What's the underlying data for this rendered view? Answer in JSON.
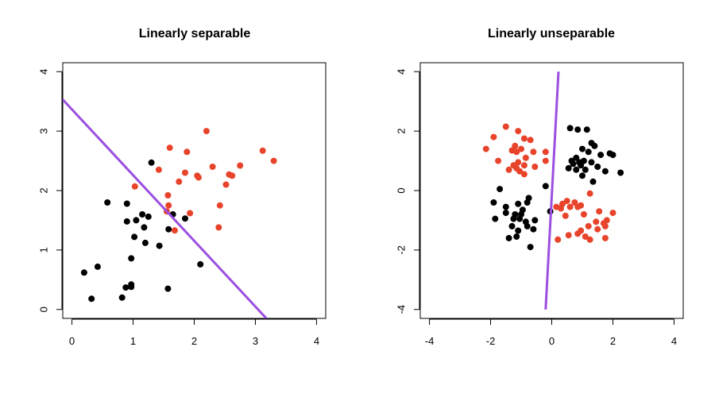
{
  "chart_data": [
    {
      "type": "scatter",
      "title": "Linearly separable",
      "xlabel": "",
      "ylabel": "",
      "xlim": [
        -0.15,
        4.15
      ],
      "ylim": [
        -0.15,
        4.15
      ],
      "xticks": [
        0,
        1,
        2,
        3,
        4
      ],
      "yticks": [
        0,
        1,
        2,
        3,
        4
      ],
      "colors": {
        "class_a": "#000000",
        "class_b": "#e8432b",
        "line": "#9b4fe0"
      },
      "series": [
        {
          "color": "class_a",
          "points": [
            [
              0.2,
              0.62
            ],
            [
              0.32,
              0.18
            ],
            [
              0.42,
              0.72
            ],
            [
              0.58,
              1.8
            ],
            [
              0.82,
              0.2
            ],
            [
              0.88,
              0.37
            ],
            [
              0.9,
              1.48
            ],
            [
              0.9,
              1.78
            ],
            [
              0.97,
              0.42
            ],
            [
              0.97,
              0.38
            ],
            [
              0.97,
              0.86
            ],
            [
              1.02,
              1.22
            ],
            [
              1.05,
              1.5
            ],
            [
              1.15,
              1.6
            ],
            [
              1.18,
              1.38
            ],
            [
              1.2,
              1.12
            ],
            [
              1.25,
              1.56
            ],
            [
              1.3,
              2.47
            ],
            [
              1.43,
              1.07
            ],
            [
              1.57,
              0.35
            ],
            [
              1.58,
              1.35
            ],
            [
              1.65,
              1.6
            ],
            [
              1.85,
              1.53
            ],
            [
              2.1,
              0.76
            ]
          ]
        },
        {
          "color": "class_b",
          "points": [
            [
              1.03,
              2.07
            ],
            [
              1.42,
              2.35
            ],
            [
              1.55,
              1.65
            ],
            [
              1.57,
              1.92
            ],
            [
              1.58,
              1.75
            ],
            [
              1.6,
              2.72
            ],
            [
              1.68,
              1.33
            ],
            [
              1.75,
              2.15
            ],
            [
              1.85,
              2.3
            ],
            [
              1.88,
              2.65
            ],
            [
              1.93,
              1.62
            ],
            [
              2.05,
              2.25
            ],
            [
              2.07,
              2.22
            ],
            [
              2.2,
              3.0
            ],
            [
              2.3,
              2.4
            ],
            [
              2.4,
              1.38
            ],
            [
              2.42,
              1.75
            ],
            [
              2.52,
              2.1
            ],
            [
              2.57,
              2.27
            ],
            [
              2.62,
              2.25
            ],
            [
              2.75,
              2.42
            ],
            [
              3.12,
              2.67
            ],
            [
              3.3,
              2.5
            ]
          ]
        }
      ],
      "line": {
        "x": [
          -0.15,
          3.18
        ],
        "y": [
          3.53,
          -0.15
        ]
      }
    },
    {
      "type": "scatter",
      "title": "Linearly unseparable",
      "xlabel": "",
      "ylabel": "",
      "xlim": [
        -4.3,
        4.3
      ],
      "ylim": [
        -4.3,
        4.3
      ],
      "xticks": [
        -4,
        -2,
        0,
        2,
        4
      ],
      "yticks": [
        -4,
        -2,
        0,
        2,
        4
      ],
      "colors": {
        "class_a": "#000000",
        "class_b": "#e8432b",
        "line": "#9b4fe0"
      },
      "series": [
        {
          "color": "class_a",
          "points": [
            [
              0.6,
              2.1
            ],
            [
              0.85,
              2.05
            ],
            [
              1.15,
              2.05
            ],
            [
              1.3,
              1.6
            ],
            [
              1.0,
              1.4
            ],
            [
              1.4,
              1.5
            ],
            [
              1.2,
              1.3
            ],
            [
              0.8,
              1.1
            ],
            [
              1.6,
              1.2
            ],
            [
              1.9,
              1.25
            ],
            [
              2.0,
              1.2
            ],
            [
              0.55,
              0.75
            ],
            [
              0.7,
              0.9
            ],
            [
              0.9,
              0.95
            ],
            [
              1.05,
              1.0
            ],
            [
              1.3,
              0.95
            ],
            [
              0.8,
              0.7
            ],
            [
              1.1,
              0.7
            ],
            [
              1.5,
              0.8
            ],
            [
              1.75,
              0.65
            ],
            [
              2.25,
              0.6
            ],
            [
              1.0,
              0.5
            ],
            [
              0.95,
              0.85
            ],
            [
              1.35,
              0.3
            ],
            [
              0.65,
              1.0
            ],
            [
              -0.2,
              0.15
            ],
            [
              -1.7,
              0.05
            ],
            [
              -1.9,
              -0.4
            ],
            [
              -1.5,
              -0.55
            ],
            [
              -1.1,
              -0.45
            ],
            [
              -0.8,
              -0.4
            ],
            [
              -0.95,
              -0.65
            ],
            [
              -1.2,
              -0.8
            ],
            [
              -1.5,
              -0.75
            ],
            [
              -1.85,
              -0.95
            ],
            [
              -1.05,
              -0.95
            ],
            [
              -0.85,
              -1.05
            ],
            [
              -0.55,
              -1.0
            ],
            [
              -0.8,
              -1.2
            ],
            [
              -1.3,
              -1.2
            ],
            [
              -0.6,
              -1.3
            ],
            [
              -1.1,
              -1.35
            ],
            [
              -1.4,
              -1.6
            ],
            [
              -1.15,
              -1.55
            ],
            [
              -0.7,
              -1.9
            ],
            [
              -0.75,
              -0.25
            ],
            [
              -1.0,
              -0.8
            ],
            [
              -1.25,
              -0.95
            ],
            [
              -0.05,
              -0.7
            ]
          ]
        },
        {
          "color": "class_b",
          "points": [
            [
              -1.5,
              2.15
            ],
            [
              -1.1,
              2.0
            ],
            [
              -1.9,
              1.8
            ],
            [
              -0.7,
              1.7
            ],
            [
              -0.9,
              1.75
            ],
            [
              -1.2,
              1.5
            ],
            [
              -1.0,
              1.4
            ],
            [
              -2.15,
              1.4
            ],
            [
              -0.6,
              1.3
            ],
            [
              -1.3,
              1.35
            ],
            [
              -1.15,
              1.3
            ],
            [
              -0.2,
              1.3
            ],
            [
              -0.85,
              1.1
            ],
            [
              -1.1,
              0.95
            ],
            [
              -1.25,
              0.85
            ],
            [
              -0.9,
              0.85
            ],
            [
              -1.75,
              1.0
            ],
            [
              -0.55,
              0.8
            ],
            [
              -1.4,
              0.7
            ],
            [
              -1.05,
              0.65
            ],
            [
              -0.9,
              0.55
            ],
            [
              -0.2,
              1.0
            ],
            [
              -1.15,
              0.75
            ],
            [
              0.15,
              -0.55
            ],
            [
              0.35,
              -0.45
            ],
            [
              0.5,
              -0.35
            ],
            [
              0.6,
              -0.55
            ],
            [
              0.75,
              -0.4
            ],
            [
              0.85,
              -0.55
            ],
            [
              0.95,
              -0.5
            ],
            [
              1.25,
              -0.1
            ],
            [
              0.45,
              -0.85
            ],
            [
              1.05,
              -0.8
            ],
            [
              1.55,
              -0.7
            ],
            [
              1.8,
              -1.0
            ],
            [
              1.7,
              -1.1
            ],
            [
              2.0,
              -0.75
            ],
            [
              1.2,
              -1.2
            ],
            [
              1.5,
              -1.3
            ],
            [
              1.75,
              -1.2
            ],
            [
              0.55,
              -1.5
            ],
            [
              0.85,
              -1.45
            ],
            [
              1.1,
              -1.55
            ],
            [
              1.25,
              -1.65
            ],
            [
              1.75,
              -1.6
            ],
            [
              0.2,
              -1.65
            ],
            [
              0.95,
              -1.35
            ],
            [
              1.45,
              -1.05
            ],
            [
              0.3,
              -0.6
            ]
          ]
        }
      ],
      "line": {
        "x": [
          -0.2,
          0.22
        ],
        "y": [
          -4.0,
          4.0
        ]
      }
    }
  ]
}
